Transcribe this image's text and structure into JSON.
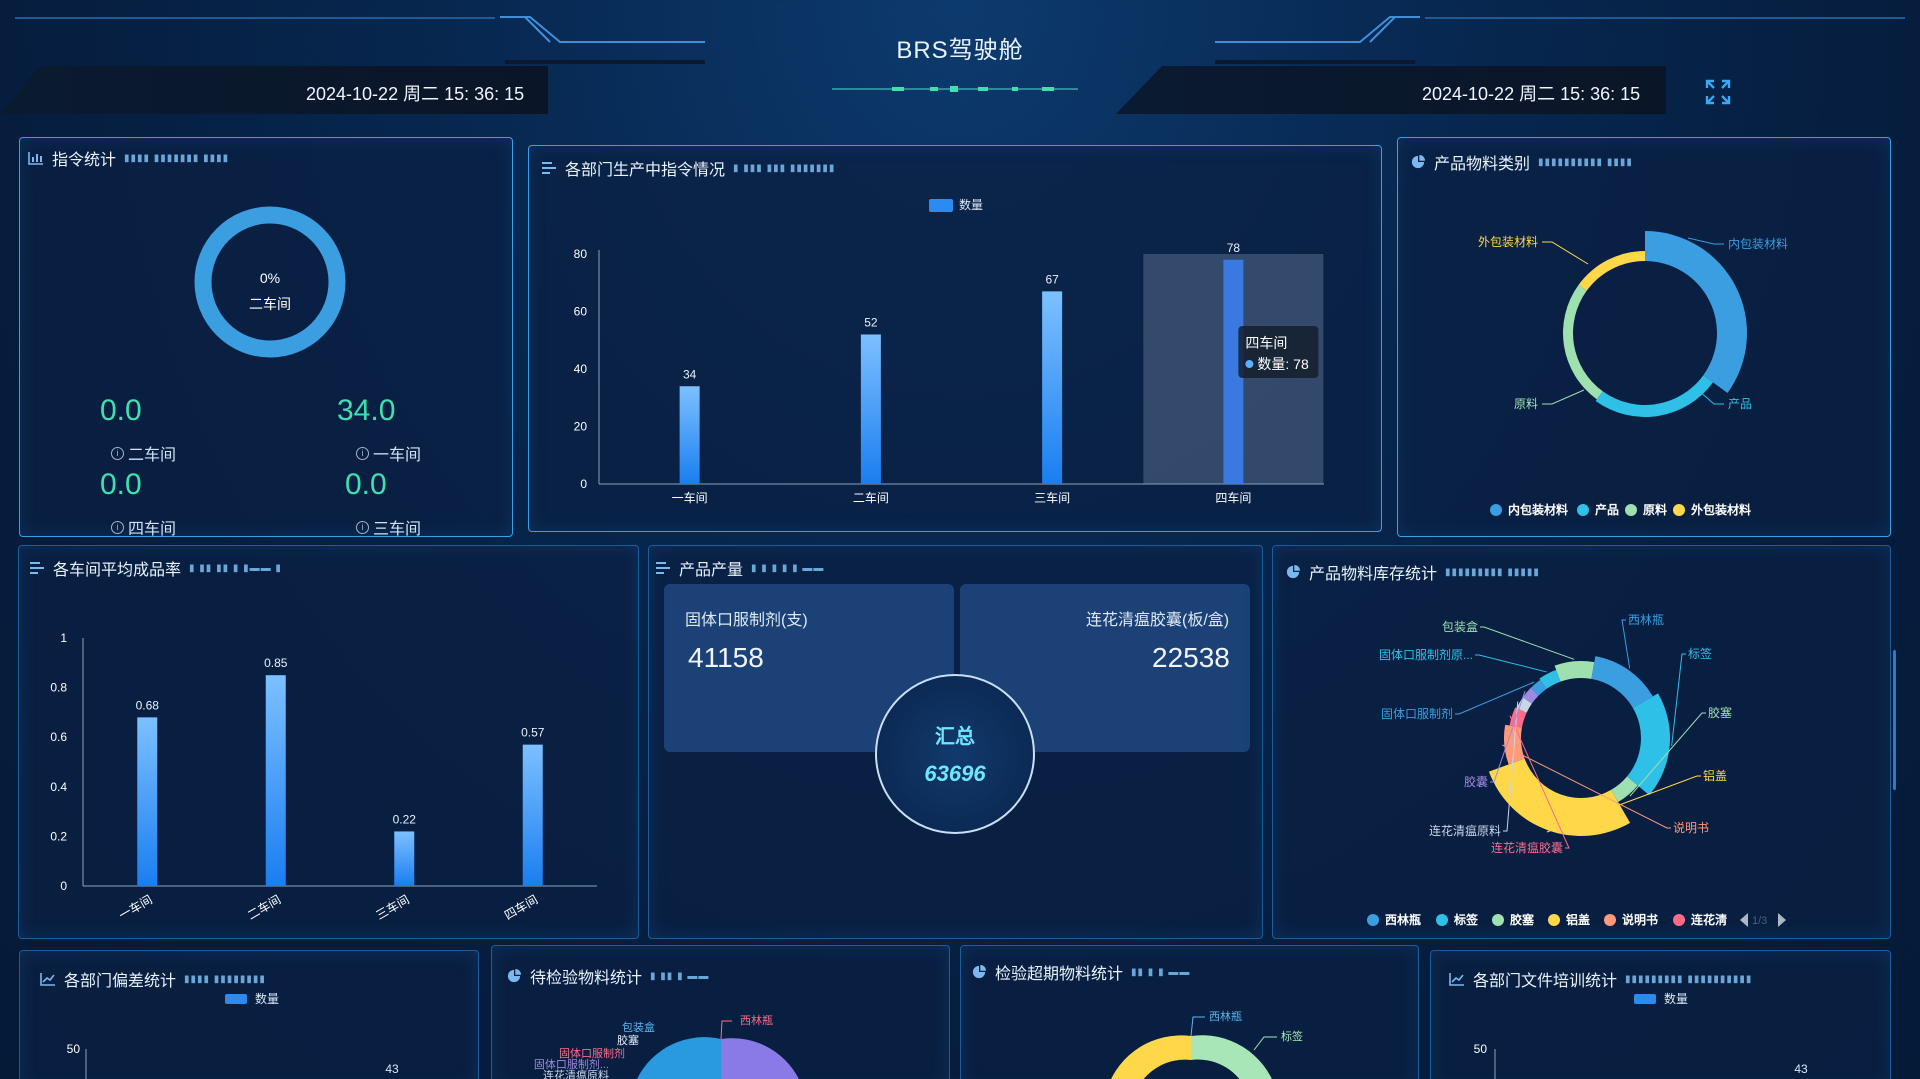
{
  "header": {
    "title": "BRS驾驶舱",
    "datetime_left": "2024-10-22 周二 15: 36: 15",
    "datetime_right": "2024-10-22 周二 15: 36: 15",
    "fullscreen_icon": "expand-icon"
  },
  "command_stats": {
    "title": "指令统计",
    "ring_percent": "0%",
    "ring_label": "二车间",
    "items": [
      {
        "value": "0.0",
        "label": "二车间"
      },
      {
        "value": "34.0",
        "label": "一车间"
      },
      {
        "value": "0.0",
        "label": "四车间"
      },
      {
        "value": "0.0",
        "label": "三车间"
      }
    ]
  },
  "dept_production": {
    "title": "各部门生产中指令情况",
    "tooltip_title": "四车间",
    "tooltip_value": "数量: 78",
    "chart_data": {
      "type": "bar",
      "categories": [
        "一车间",
        "二车间",
        "三车间",
        "四车间"
      ],
      "series": [
        {
          "name": "数量",
          "values": [
            34,
            52,
            67,
            78
          ]
        }
      ],
      "ylim": [
        0,
        80
      ],
      "yticks": [
        0,
        20,
        40,
        60,
        80
      ],
      "legend": "top-center",
      "highlighted_category": "四车间"
    }
  },
  "material_category": {
    "title": "产品物料类别",
    "chart_data": {
      "type": "pie",
      "style": "rose-donut",
      "labels": [
        "内包装材料",
        "产品",
        "原料",
        "外包装材料"
      ],
      "values": [
        35,
        25,
        25,
        15
      ],
      "colors": [
        "#3a9ee0",
        "#2ec0e6",
        "#9fe0b0",
        "#ffd84a"
      ],
      "legend": "bottom"
    }
  },
  "yield_rate": {
    "title": "各车间平均成品率",
    "chart_data": {
      "type": "bar",
      "categories": [
        "一车间",
        "二车间",
        "三车间",
        "四车间"
      ],
      "values": [
        0.68,
        0.85,
        0.22,
        0.57
      ],
      "ylim": [
        0,
        1
      ],
      "yticks": [
        "0",
        "0.2",
        "0.4",
        "0.6",
        "0.8",
        "1"
      ]
    }
  },
  "product_output": {
    "title": "产品产量",
    "left_label": "固体口服制剂(支)",
    "left_value": "41158",
    "right_label": "连花清瘟胶囊(板/盒)",
    "right_value": "22538",
    "summary_label": "汇总",
    "summary_value": "63696"
  },
  "material_inventory": {
    "title": "产品物料库存统计",
    "pager": "1/3",
    "chart_data": {
      "type": "pie",
      "style": "rose-donut",
      "labels": [
        "包装盒",
        "西林瓶",
        "标签",
        "胶塞",
        "铝盖",
        "说明书",
        "连花清瘟胶囊",
        "连花清瘟原料",
        "胶囊",
        "固体口服制剂",
        "固体口服制剂原..."
      ],
      "values": [
        6,
        10,
        14,
        4,
        20,
        6,
        3,
        2,
        2,
        2,
        3
      ],
      "colors": [
        "#9fe0b0",
        "#3a9ee0",
        "#2ec0e6",
        "#9fe0b0",
        "#ffd84a",
        "#ff9a7a",
        "#ff6b8a",
        "#c9d6e8",
        "#9f8ae0",
        "#3a9ee0",
        "#2ec0e6"
      ],
      "legend_visible": [
        "西林瓶",
        "标签",
        "胶塞",
        "铝盖",
        "说明书",
        "连花淸"
      ],
      "legend": "bottom"
    }
  },
  "deviation": {
    "title": "各部门偏差统计",
    "legend": "数量",
    "chart_data": {
      "type": "bar",
      "series": [
        {
          "name": "数量",
          "values": [
            43
          ]
        }
      ],
      "ylim": [
        0,
        50
      ],
      "visible_ytick": "50",
      "visible_label": "43"
    }
  },
  "pending_inspection": {
    "title": "待检验物料统计",
    "labels": [
      "包装盒",
      "胶塞",
      "固体口服制剂",
      "固体口服制剂...",
      "连花清瘟原料",
      "西林瓶"
    ]
  },
  "overdue_inspection": {
    "title": "检验超期物料统计",
    "labels": [
      "西林瓶",
      "标签"
    ]
  },
  "training": {
    "title": "各部门文件培训统计",
    "legend": "数量",
    "chart_data": {
      "type": "bar",
      "series": [
        {
          "name": "数量",
          "values": [
            43
          ]
        }
      ],
      "ylim": [
        0,
        50
      ],
      "visible_ytick": "50",
      "visible_label": "43"
    }
  },
  "colors": {
    "accent": "#3fe0b0",
    "bar": "#2a8cf0",
    "border": "#1d5c9a"
  }
}
